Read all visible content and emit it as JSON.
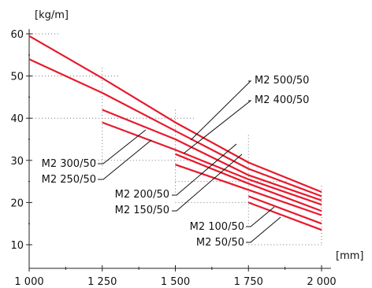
{
  "chart_data": {
    "type": "line",
    "title": "",
    "xlabel": "[mm]",
    "ylabel": "[kg/m]",
    "xlim": [
      1000,
      2000
    ],
    "ylim": [
      5,
      62
    ],
    "grid": "dotted reference lines",
    "x_ticks": [
      {
        "value": 1000,
        "label": "1 000"
      },
      {
        "value": 1250,
        "label": "1 250"
      },
      {
        "value": 1500,
        "label": "1 500"
      },
      {
        "value": 1750,
        "label": "1 750"
      },
      {
        "value": 2000,
        "label": "2 000"
      }
    ],
    "y_ticks": [
      {
        "value": 10,
        "label": "10"
      },
      {
        "value": 20,
        "label": "20"
      },
      {
        "value": 30,
        "label": "30"
      },
      {
        "value": 40,
        "label": "40"
      },
      {
        "value": 50,
        "label": "50"
      },
      {
        "value": 60,
        "label": "60"
      }
    ],
    "series": [
      {
        "name": "M2 500/50",
        "x": [
          1000,
          1250,
          1500,
          1750,
          2000
        ],
        "y": [
          59.5,
          49.5,
          39,
          29.5,
          22.5
        ]
      },
      {
        "name": "M2 400/50",
        "x": [
          1000,
          1250,
          1500,
          1750,
          2000
        ],
        "y": [
          54,
          46,
          37,
          28,
          21.5
        ]
      },
      {
        "name": "M2 300/50",
        "x": [
          1250,
          1500,
          1750,
          2000
        ],
        "y": [
          42,
          35,
          26.5,
          20.5
        ]
      },
      {
        "name": "M2 250/50",
        "x": [
          1250,
          1500,
          1750,
          2000
        ],
        "y": [
          39,
          32.5,
          25.5,
          19.5
        ]
      },
      {
        "name": "M2 200/50",
        "x": [
          1500,
          1750,
          2000
        ],
        "y": [
          31.5,
          24.5,
          18
        ]
      },
      {
        "name": "M2 150/50",
        "x": [
          1500,
          1750,
          2000
        ],
        "y": [
          29,
          23,
          17
        ]
      },
      {
        "name": "M2 100/50",
        "x": [
          1750,
          2000
        ],
        "y": [
          21.5,
          15
        ]
      },
      {
        "name": "M2 50/50",
        "x": [
          1750,
          2000
        ],
        "y": [
          20,
          13.5
        ]
      }
    ],
    "line_color": "#e8192c",
    "label_line_color": "#111111",
    "grid_color": "#777777"
  }
}
